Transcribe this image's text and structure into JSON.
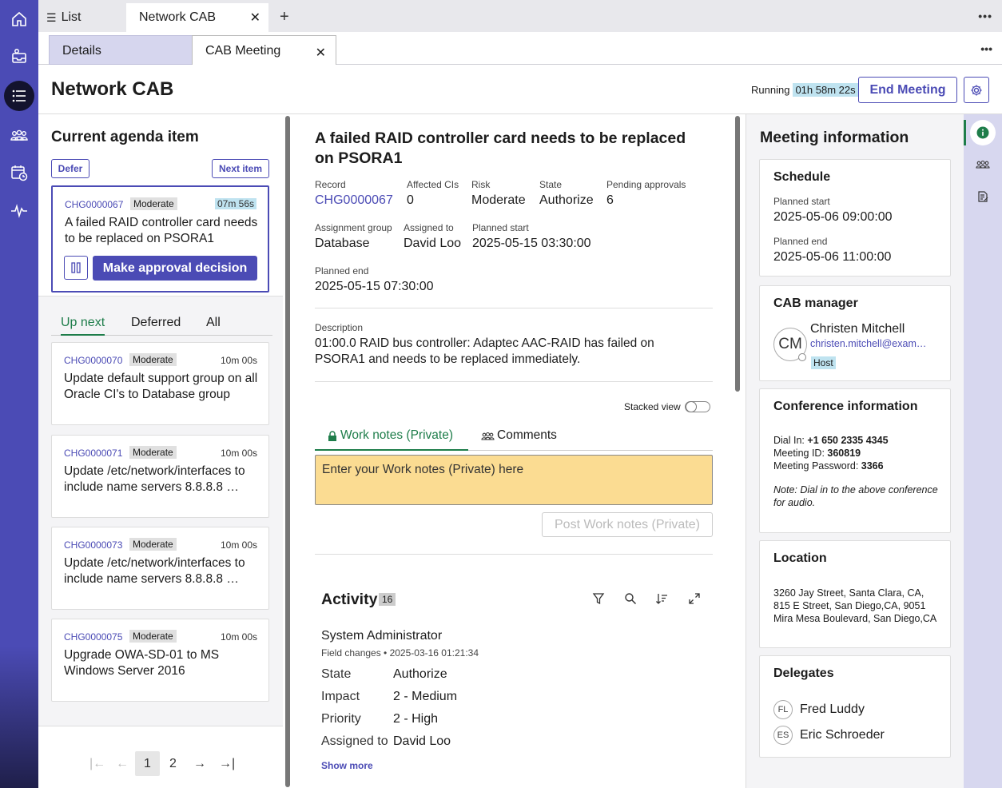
{
  "rail": {
    "icons": [
      "home-icon",
      "inbox-icon",
      "list-icon",
      "people-icon",
      "calendar-clock-icon",
      "pulse-icon"
    ]
  },
  "tabs": {
    "list_label": "List",
    "active_tab": "Network CAB"
  },
  "subtabs": {
    "details": "Details",
    "cab_meeting": "CAB Meeting"
  },
  "header": {
    "title": "Network CAB",
    "running_label": "Running",
    "timer": "01h 58m 22s",
    "end_meeting": "End Meeting"
  },
  "agenda": {
    "heading": "Current agenda item",
    "defer": "Defer",
    "next_item": "Next item",
    "current": {
      "number": "CHG0000067",
      "risk": "Moderate",
      "duration": "07m 56s",
      "title": "A failed RAID controller card needs to be replaced on PSORA1",
      "approve": "Make approval decision"
    },
    "tabs": [
      "Up next",
      "Deferred",
      "All"
    ],
    "items": [
      {
        "number": "CHG0000070",
        "risk": "Moderate",
        "duration": "10m 00s",
        "title": "Update default support group on all Oracle CI's to Database group"
      },
      {
        "number": "CHG0000071",
        "risk": "Moderate",
        "duration": "10m 00s",
        "title": "Update /etc/network/interfaces to include name servers 8.8.8.8 …"
      },
      {
        "number": "CHG0000073",
        "risk": "Moderate",
        "duration": "10m 00s",
        "title": "Update /etc/network/interfaces to include name servers 8.8.8.8 …"
      },
      {
        "number": "CHG0000075",
        "risk": "Moderate",
        "duration": "10m 00s",
        "title": "Upgrade OWA-SD-01 to MS Windows Server 2016"
      }
    ],
    "pages": [
      "1",
      "2"
    ]
  },
  "record": {
    "title": "A failed RAID controller card needs to be replaced on PSORA1",
    "fields": [
      {
        "label": "Record",
        "value": "CHG0000067"
      },
      {
        "label": "Affected CIs",
        "value": "0"
      },
      {
        "label": "Risk",
        "value": "Moderate"
      },
      {
        "label": "State",
        "value": "Authorize"
      },
      {
        "label": "Pending approvals",
        "value": "6"
      },
      {
        "label": "Assignment group",
        "value": "Database"
      },
      {
        "label": "Assigned to",
        "value": "David Loo"
      },
      {
        "label": "Planned start",
        "value": "2025-05-15 03:30:00"
      },
      {
        "label": "Planned end",
        "value": "2025-05-15 07:30:00"
      }
    ],
    "description_label": "Description",
    "description": "01:00.0 RAID bus controller: Adaptec AAC-RAID has failed on PSORA1 and needs to be replaced immediately.",
    "stacked_view": "Stacked view",
    "work_notes_tab": "Work notes (Private)",
    "comments_tab": "Comments",
    "notes_placeholder": "Enter your Work notes (Private) here",
    "post_button": "Post Work notes (Private)"
  },
  "activity": {
    "heading": "Activity",
    "count": "16",
    "author": "System Administrator",
    "meta": "Field changes • 2025-03-16 01:21:34",
    "changes": [
      {
        "field": "State",
        "value": "Authorize"
      },
      {
        "field": "Impact",
        "value": "2 - Medium"
      },
      {
        "field": "Priority",
        "value": "2 - High"
      },
      {
        "field": "Assigned to",
        "value": "David Loo"
      }
    ],
    "show_more": "Show more"
  },
  "meeting": {
    "heading": "Meeting information",
    "schedule": {
      "title": "Schedule",
      "start_label": "Planned start",
      "start": "2025-05-06 09:00:00",
      "end_label": "Planned end",
      "end": "2025-05-06 11:00:00"
    },
    "manager": {
      "title": "CAB manager",
      "initials": "CM",
      "name": "Christen Mitchell",
      "email": "christen.mitchell@exam…",
      "badge": "Host"
    },
    "conference": {
      "title": "Conference information",
      "dial_label": "Dial In: ",
      "dial": "+1 650 2335 4345",
      "id_label": "Meeting ID: ",
      "id": "360819",
      "pw_label": "Meeting Password: ",
      "pw": "3366",
      "note": "Note: Dial in to the above conference for audio."
    },
    "location": {
      "title": "Location",
      "lines": [
        "3260 Jay Street, Santa Clara, CA,",
        "815 E Street, San Diego,CA, 9051",
        "Mira Mesa Boulevard, San Diego,CA"
      ]
    },
    "delegates": {
      "title": "Delegates",
      "people": [
        {
          "initials": "FL",
          "name": "Fred Luddy"
        },
        {
          "initials": "ES",
          "name": "Eric Schroeder"
        }
      ]
    }
  },
  "colors": {
    "accent": "#4b4bb5",
    "green": "#1e7d4a",
    "timer_bg": "#bfe3f0",
    "notes_bg": "#fbdc92"
  }
}
